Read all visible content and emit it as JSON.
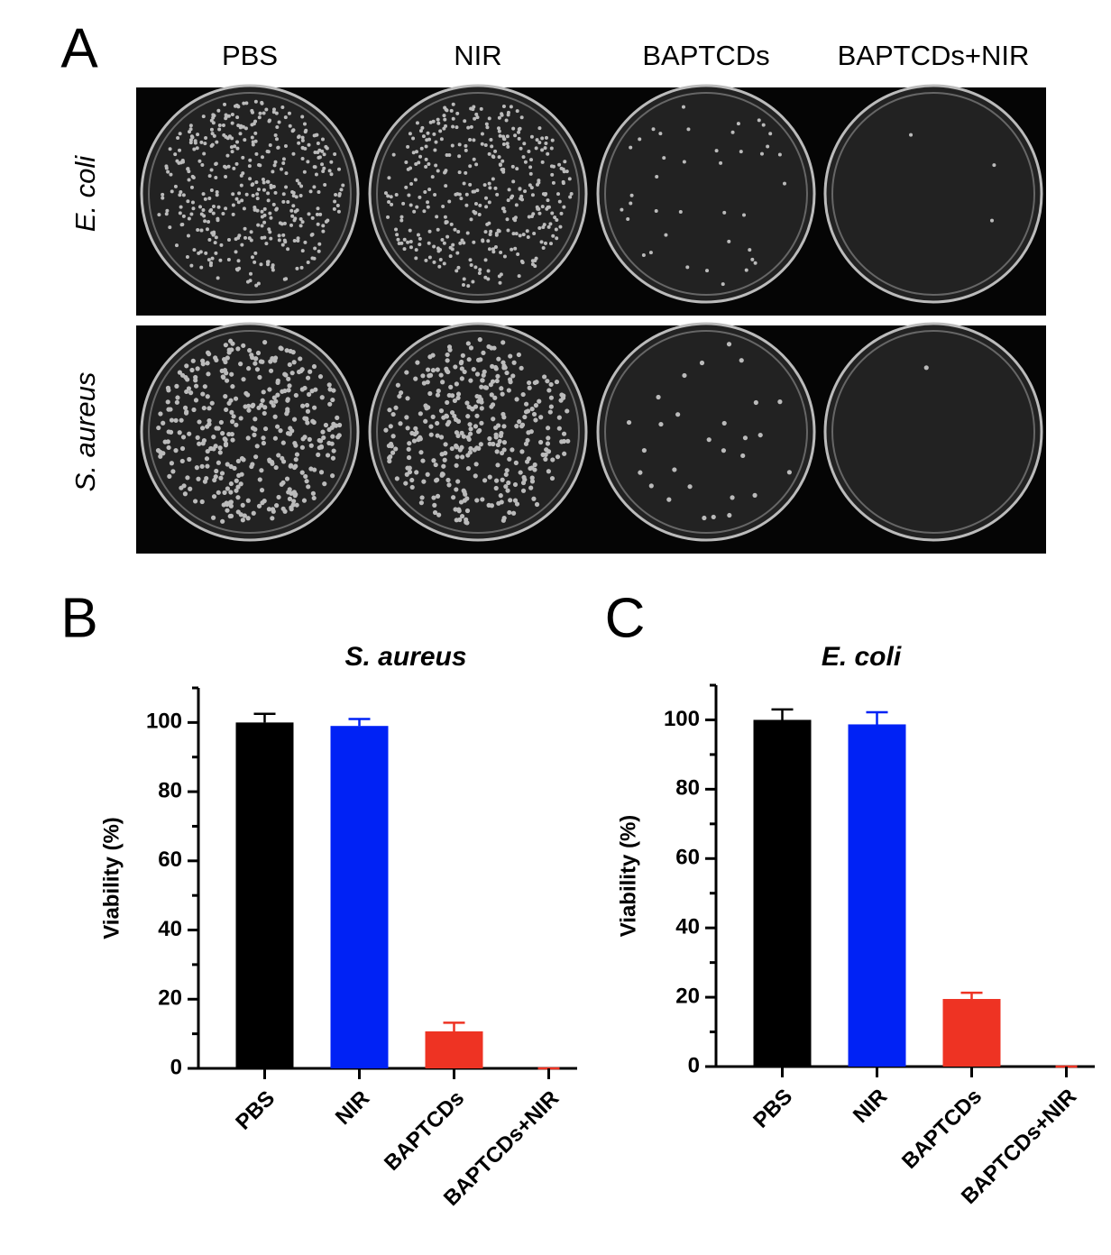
{
  "panel_a": {
    "panel_label": "A",
    "columns": [
      "PBS",
      "NIR",
      "BAPTCDs",
      "BAPTCDs+NIR"
    ],
    "rows": [
      "E. coli",
      "S. aureus"
    ]
  },
  "chart_data": [
    {
      "type": "bar",
      "panel_label": "B",
      "title": "S. aureus",
      "y_label": "Viability (%)",
      "categories": [
        "PBS",
        "NIR",
        "BAPTCDs",
        "BAPTCDs+NIR"
      ],
      "values": [
        100,
        99,
        10.7,
        0
      ],
      "errors": [
        2.5,
        2,
        2.5,
        0
      ],
      "colors": [
        "#000000",
        "#0022f5",
        "#ee3323",
        "#ee3323"
      ],
      "ylim": [
        0,
        110
      ],
      "yticks": [
        0,
        20,
        40,
        60,
        80,
        100
      ],
      "minor_yticks": [
        10,
        30,
        50,
        70,
        90,
        110
      ]
    },
    {
      "type": "bar",
      "panel_label": "C",
      "title": "E. coli",
      "y_label": "Viability (%)",
      "categories": [
        "PBS",
        "NIR",
        "BAPTCDs",
        "BAPTCDs+NIR"
      ],
      "values": [
        100,
        98.7,
        19.5,
        0
      ],
      "errors": [
        3,
        3.5,
        1.8,
        0
      ],
      "colors": [
        "#000000",
        "#0022f5",
        "#ee3323",
        "#ee3323"
      ],
      "ylim": [
        0,
        110
      ],
      "yticks": [
        0,
        20,
        40,
        60,
        80,
        100
      ],
      "minor_yticks": [
        10,
        30,
        50,
        70,
        90,
        110
      ]
    }
  ]
}
